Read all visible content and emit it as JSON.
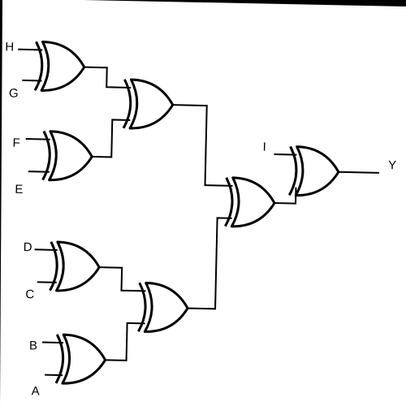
{
  "diagram": {
    "inputs": [
      "H",
      "G",
      "F",
      "E",
      "D",
      "C",
      "B",
      "A",
      "I"
    ],
    "output": "Y",
    "gates": [
      {
        "id": "g1",
        "type": "xor",
        "inputs": [
          "H",
          "G"
        ]
      },
      {
        "id": "g2",
        "type": "xor",
        "inputs": [
          "F",
          "E"
        ]
      },
      {
        "id": "g3",
        "type": "xor",
        "inputs": [
          "g1",
          "g2"
        ]
      },
      {
        "id": "g4",
        "type": "xor",
        "inputs": [
          "D",
          "C"
        ]
      },
      {
        "id": "g5",
        "type": "xor",
        "inputs": [
          "B",
          "A"
        ]
      },
      {
        "id": "g6",
        "type": "xor",
        "inputs": [
          "g4",
          "g5"
        ]
      },
      {
        "id": "g7",
        "type": "xor",
        "inputs": [
          "g3",
          "g6"
        ]
      },
      {
        "id": "g8",
        "type": "xor",
        "inputs": [
          "I",
          "g7"
        ]
      }
    ]
  },
  "colors": {
    "background": "#000000",
    "paper": "#ffffff",
    "ink": "#000000"
  }
}
